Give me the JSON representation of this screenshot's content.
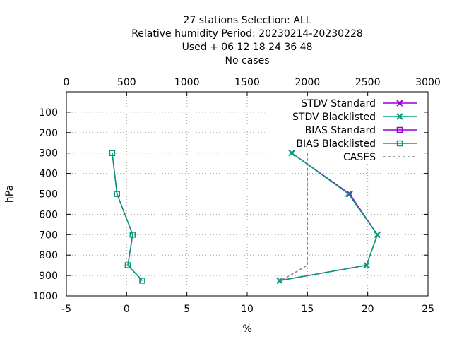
{
  "chart_data": {
    "type": "line",
    "title_lines": [
      "27 stations Selection: ALL",
      "Relative humidity  Period: 20230214-20230228",
      "Used   + 06 12 18 24 36 48",
      "No cases"
    ],
    "xlabel": "%",
    "ylabel": "hPa",
    "xlim": [
      -5,
      25
    ],
    "x2lim": [
      0,
      3000
    ],
    "ylim": [
      1000,
      0
    ],
    "x_ticks": [
      "-5",
      "0",
      "5",
      "10",
      "15",
      "20",
      "25"
    ],
    "x2_ticks": [
      "0",
      "500",
      "1000",
      "1500",
      "2000",
      "2500",
      "3000"
    ],
    "y_ticks": [
      "100",
      "200",
      "300",
      "400",
      "500",
      "600",
      "700",
      "800",
      "900",
      "1000"
    ],
    "grid": true,
    "legend_position": "top-right",
    "series": [
      {
        "name": "STDV Standard",
        "color": "#9400d3",
        "marker": "x",
        "points": [
          [
            13.7,
            300
          ],
          [
            18.5,
            500
          ],
          [
            20.8,
            700
          ],
          [
            19.9,
            850
          ],
          [
            12.7,
            925
          ]
        ]
      },
      {
        "name": "STDV Blacklisted",
        "color": "#009e73",
        "marker": "x",
        "points": [
          [
            13.7,
            300
          ],
          [
            18.4,
            500
          ],
          [
            20.8,
            700
          ],
          [
            19.9,
            850
          ],
          [
            12.7,
            925
          ]
        ]
      },
      {
        "name": "BIAS Standard",
        "color": "#9400d3",
        "marker": "square",
        "points": [
          [
            -1.2,
            300
          ],
          [
            -0.8,
            500
          ],
          [
            0.5,
            700
          ],
          [
            0.1,
            850
          ],
          [
            1.3,
            925
          ]
        ]
      },
      {
        "name": "BIAS Blacklisted",
        "color": "#009e73",
        "marker": "square",
        "points": [
          [
            -1.2,
            300
          ],
          [
            -0.8,
            500
          ],
          [
            0.5,
            700
          ],
          [
            0.1,
            850
          ],
          [
            1.3,
            925
          ]
        ]
      },
      {
        "name": "CASES",
        "color": "#888888",
        "dashed": true,
        "axis": "x2",
        "points": [
          [
            2000,
            300
          ],
          [
            2000,
            500
          ],
          [
            2000,
            700
          ],
          [
            2000,
            850
          ],
          [
            1780,
            925
          ]
        ]
      }
    ]
  }
}
